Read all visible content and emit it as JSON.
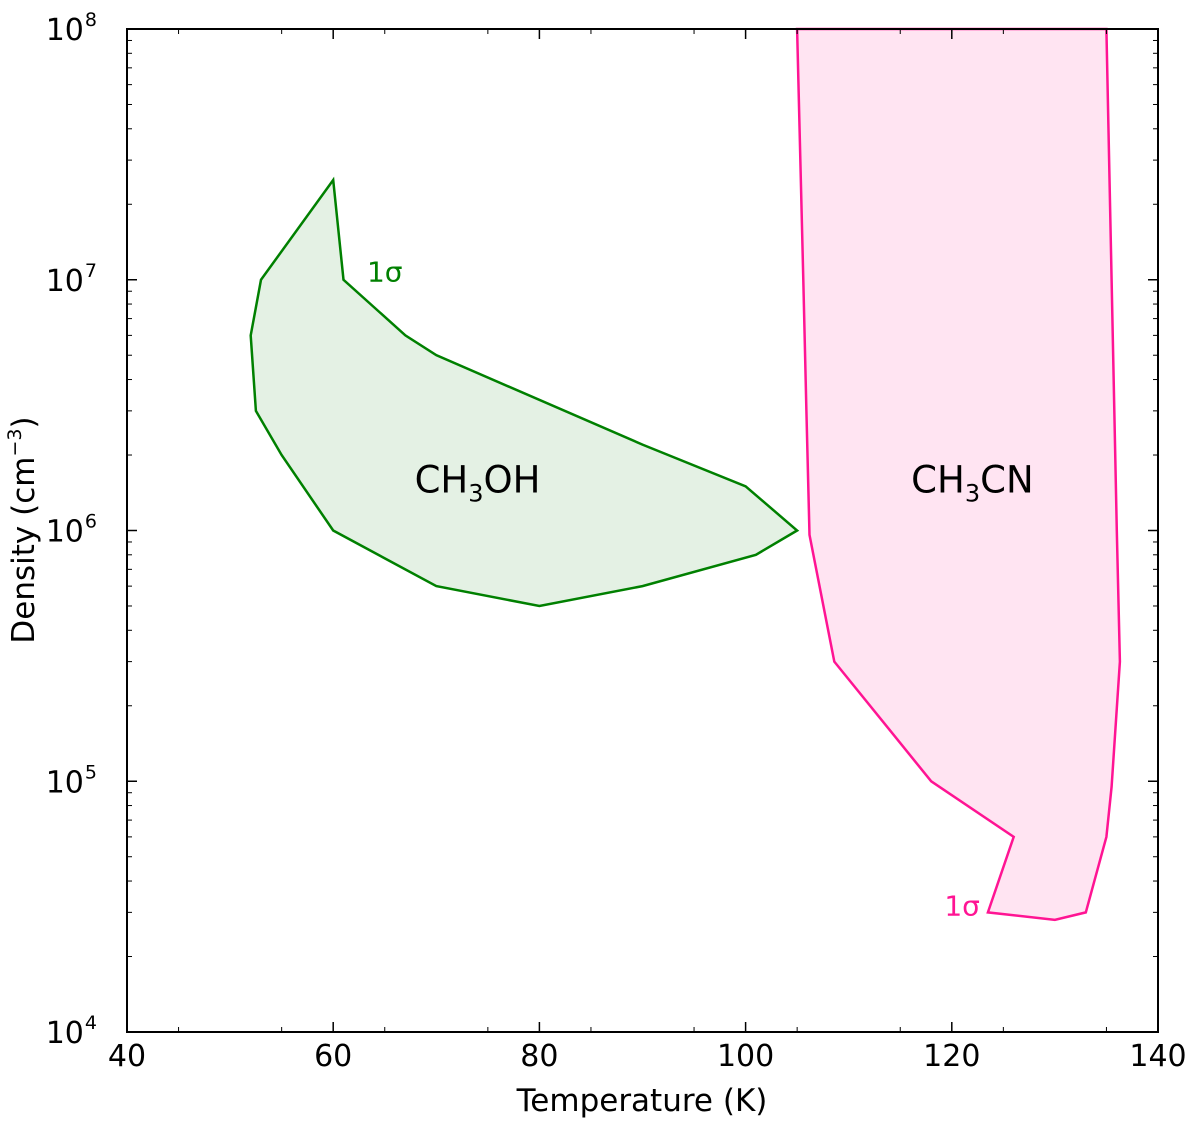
{
  "chart_data": {
    "type": "area",
    "xlabel": "Temperature (K)",
    "ylabel": "Density (cm",
    "ylabel_sup": "−3",
    "ylabel_close": ")",
    "xlim": [
      40,
      140
    ],
    "ylim": [
      10000,
      100000000
    ],
    "yscale": "log",
    "grid": false,
    "x_ticks": [
      40,
      60,
      80,
      100,
      120,
      140
    ],
    "y_ticks": [
      {
        "value": 10000,
        "base": "10",
        "exp": "4"
      },
      {
        "value": 100000,
        "base": "10",
        "exp": "5"
      },
      {
        "value": 1000000,
        "base": "10",
        "exp": "6"
      },
      {
        "value": 10000000,
        "base": "10",
        "exp": "7"
      },
      {
        "value": 100000000,
        "base": "10",
        "exp": "8"
      }
    ],
    "series": [
      {
        "label_main": "CH",
        "label_sub": "3",
        "label_rest": "OH",
        "label_at": [
          74,
          1600000
        ],
        "sigma_label": "1σ",
        "sigma_at": [
          65,
          10800000
        ],
        "color": "#008000",
        "fill": "#e4f1e4",
        "points": [
          [
            60,
            25000000
          ],
          [
            61,
            10000000
          ],
          [
            67,
            6000000
          ],
          [
            70,
            5000000
          ],
          [
            90,
            2200000
          ],
          [
            100,
            1500000
          ],
          [
            105,
            1000000
          ],
          [
            101,
            800000
          ],
          [
            90,
            600000
          ],
          [
            80,
            500000
          ],
          [
            70,
            600000
          ],
          [
            60,
            1000000
          ],
          [
            55,
            2000000
          ],
          [
            52.5,
            3000000
          ],
          [
            52,
            6000000
          ],
          [
            53,
            10000000
          ]
        ]
      },
      {
        "label_main": "CH",
        "label_sub": "3",
        "label_rest": "CN",
        "label_at": [
          122,
          1600000
        ],
        "sigma_label": "1σ",
        "sigma_at": [
          121,
          32000
        ],
        "color": "#ff1493",
        "fill": "#ffe4f2",
        "points": [
          [
            105,
            100000000
          ],
          [
            105.6,
            10000000
          ],
          [
            105.9,
            3000000
          ],
          [
            106.2,
            960000
          ],
          [
            108.6,
            300000
          ],
          [
            118,
            100000
          ],
          [
            126,
            60000
          ],
          [
            123.5,
            30000
          ],
          [
            130,
            28000
          ],
          [
            133,
            30000
          ],
          [
            135,
            60000
          ],
          [
            135.5,
            95000
          ],
          [
            136.3,
            300000
          ],
          [
            136,
            1000000
          ],
          [
            135.5,
            10000000
          ],
          [
            135,
            100000000
          ]
        ]
      }
    ]
  }
}
